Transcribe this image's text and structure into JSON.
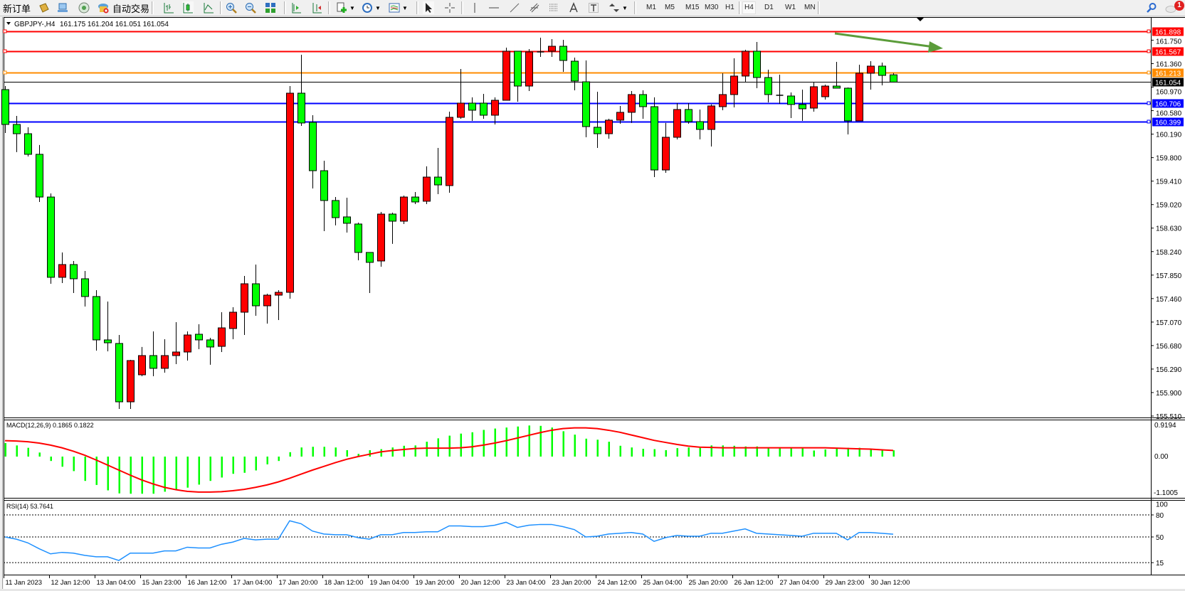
{
  "toolbar": {
    "new_order": "新订单",
    "auto_trading": "自动交易",
    "timeframes": [
      "M1",
      "M5",
      "M15",
      "M30",
      "H1",
      "H4",
      "D1",
      "W1",
      "MN"
    ],
    "active_timeframe": "H4",
    "notifications_count": "1",
    "icons": [
      "new-order-icon",
      "market-watch-icon",
      "navigator-icon",
      "signals-icon",
      "auto-trading-icon",
      "bar-chart-icon",
      "candlestick-icon",
      "line-chart-icon",
      "zoom-in-icon",
      "zoom-out-icon",
      "tile-windows-icon",
      "auto-scroll-icon",
      "chart-shift-icon",
      "new-chart-icon",
      "periods-clock-icon",
      "templates-icon",
      "cursor-icon",
      "crosshair-icon",
      "vertical-line-icon",
      "horizontal-line-icon",
      "trendline-icon",
      "fibonacci-expansion-icon",
      "fibonacci-fan-icon",
      "text-icon",
      "text-label-icon",
      "arrows-icon",
      "search-icon",
      "chat-icon"
    ]
  },
  "chart": {
    "symbol": "GBPJPY-,H4",
    "ohlc": "161.175 161.204 161.051 161.054",
    "price_ticks": [
      "161.750",
      "161.360",
      "160.970",
      "160.580",
      "160.190",
      "159.800",
      "159.410",
      "159.020",
      "158.630",
      "158.240",
      "157.850",
      "157.460",
      "157.070",
      "156.680",
      "156.290",
      "155.900",
      "155.510"
    ],
    "levels": [
      {
        "price": "161.898",
        "color": "#ff0000"
      },
      {
        "price": "161.567",
        "color": "#ff0000"
      },
      {
        "price": "161.213",
        "color": "#ff8c00"
      },
      {
        "price": "160.706",
        "color": "#0000ff"
      },
      {
        "price": "160.399",
        "color": "#0000ff"
      }
    ],
    "current_price": "161.054",
    "up_color": "#ff0000",
    "down_color": "#00ff00",
    "arrow_color": "#5b9c3a",
    "time_labels": [
      "11 Jan 2023",
      "12 Jan 12:00",
      "13 Jan 04:00",
      "15 Jan 23:00",
      "16 Jan 12:00",
      "17 Jan 04:00",
      "17 Jan 20:00",
      "18 Jan 12:00",
      "19 Jan 04:00",
      "19 Jan 20:00",
      "20 Jan 12:00",
      "23 Jan 04:00",
      "23 Jan 20:00",
      "24 Jan 12:00",
      "25 Jan 04:00",
      "25 Jan 20:00",
      "26 Jan 12:00",
      "27 Jan 04:00",
      "29 Jan 23:00",
      "30 Jan 12:00"
    ]
  },
  "macd": {
    "label": "MACD(12,26,9) 0.1865 0.1822",
    "axis_labels": [
      "0.9194",
      "0.00",
      "-1.1005"
    ],
    "histogram_color": "#00ff00",
    "signal_color": "#ff0000"
  },
  "rsi": {
    "label": "RSI(14) 53.7641",
    "axis_labels": [
      "100",
      "80",
      "50",
      "15"
    ],
    "line_color": "#1e90ff"
  },
  "chart_data": {
    "type": "candlestick",
    "timeframe": "H4",
    "ylim": [
      155.51,
      161.898
    ],
    "candles_ohlc": [
      [
        160.929,
        160.988,
        160.209,
        160.351
      ],
      [
        160.351,
        160.492,
        159.891,
        160.197
      ],
      [
        160.197,
        160.304,
        159.82,
        159.855
      ],
      [
        159.855,
        160.009,
        159.064,
        159.146
      ],
      [
        159.146,
        159.206,
        157.706,
        157.813
      ],
      [
        157.813,
        158.226,
        157.718,
        158.025
      ],
      [
        158.025,
        158.084,
        157.553,
        157.789
      ],
      [
        157.789,
        157.919,
        157.328,
        157.494
      ],
      [
        157.494,
        157.6,
        156.596,
        156.774
      ],
      [
        156.774,
        157.411,
        156.585,
        156.726
      ],
      [
        156.715,
        156.856,
        155.628,
        155.746
      ],
      [
        155.746,
        156.443,
        155.628,
        156.431
      ],
      [
        156.195,
        156.656,
        156.171,
        156.514
      ],
      [
        156.514,
        156.915,
        156.171,
        156.302
      ],
      [
        156.302,
        156.785,
        156.23,
        156.514
      ],
      [
        156.514,
        157.069,
        156.372,
        156.573
      ],
      [
        156.573,
        156.915,
        156.431,
        156.856
      ],
      [
        156.868,
        157.034,
        156.62,
        156.774
      ],
      [
        156.774,
        156.809,
        156.361,
        156.656
      ],
      [
        156.667,
        157.234,
        156.573,
        156.974
      ],
      [
        156.963,
        157.317,
        156.785,
        157.234
      ],
      [
        157.234,
        157.836,
        156.856,
        157.706
      ],
      [
        157.706,
        158.025,
        157.175,
        157.34
      ],
      [
        157.34,
        157.541,
        157.045,
        157.517
      ],
      [
        157.517,
        157.6,
        157.104,
        157.564
      ],
      [
        157.564,
        160.988,
        157.458,
        160.87
      ],
      [
        160.87,
        161.508,
        160.327,
        160.375
      ],
      [
        160.386,
        160.504,
        159.288,
        159.583
      ],
      [
        159.583,
        159.749,
        158.58,
        159.088
      ],
      [
        159.088,
        159.146,
        158.675,
        158.804
      ],
      [
        158.816,
        159.135,
        158.556,
        158.71
      ],
      [
        158.698,
        158.722,
        158.096,
        158.226
      ],
      [
        158.226,
        158.226,
        157.553,
        158.061
      ],
      [
        158.084,
        158.899,
        157.99,
        158.863
      ],
      [
        158.863,
        158.887,
        158.368,
        158.745
      ],
      [
        158.745,
        159.17,
        158.698,
        159.146
      ],
      [
        159.146,
        159.229,
        159.029,
        159.064
      ],
      [
        159.076,
        159.655,
        159.029,
        159.477
      ],
      [
        159.477,
        159.961,
        159.194,
        159.347
      ],
      [
        159.336,
        160.563,
        159.217,
        160.469
      ],
      [
        160.469,
        161.272,
        160.445,
        160.705
      ],
      [
        160.705,
        160.8,
        160.41,
        160.587
      ],
      [
        160.705,
        160.859,
        160.445,
        160.504
      ],
      [
        160.504,
        160.8,
        160.351,
        160.752
      ],
      [
        160.752,
        161.626,
        160.752,
        161.567
      ],
      [
        161.567,
        161.567,
        160.729,
        160.988
      ],
      [
        160.988,
        161.602,
        160.906,
        161.555
      ],
      [
        161.555,
        161.791,
        161.472,
        161.555
      ],
      [
        161.567,
        161.767,
        161.472,
        161.649
      ],
      [
        161.649,
        161.756,
        161.224,
        161.413
      ],
      [
        161.401,
        161.46,
        160.918,
        161.071
      ],
      [
        161.059,
        161.413,
        160.138,
        160.315
      ],
      [
        160.304,
        160.894,
        159.961,
        160.197
      ],
      [
        160.197,
        160.445,
        160.115,
        160.422
      ],
      [
        160.422,
        160.658,
        160.363,
        160.552
      ],
      [
        160.552,
        160.906,
        160.375,
        160.847
      ],
      [
        160.847,
        160.918,
        160.445,
        160.646
      ],
      [
        160.646,
        160.8,
        159.477,
        159.595
      ],
      [
        159.595,
        160.375,
        159.548,
        160.138
      ],
      [
        160.138,
        160.705,
        160.103,
        160.599
      ],
      [
        160.599,
        160.705,
        160.363,
        160.398
      ],
      [
        160.398,
        160.599,
        160.103,
        160.268
      ],
      [
        160.268,
        160.682,
        159.985,
        160.658
      ],
      [
        160.646,
        161.201,
        160.587,
        160.847
      ],
      [
        160.847,
        161.449,
        160.634,
        161.154
      ],
      [
        161.154,
        161.59,
        161.047,
        161.567
      ],
      [
        161.567,
        161.72,
        160.953,
        161.13
      ],
      [
        161.13,
        161.26,
        160.717,
        160.847
      ],
      [
        160.835,
        161.177,
        160.693,
        160.835
      ],
      [
        160.823,
        160.882,
        160.457,
        160.682
      ],
      [
        160.682,
        160.929,
        160.41,
        160.611
      ],
      [
        160.622,
        161.047,
        160.563,
        160.977
      ],
      [
        160.811,
        161.012,
        160.764,
        160.988
      ],
      [
        160.988,
        161.39,
        160.953,
        160.953
      ],
      [
        160.953,
        160.965,
        160.186,
        160.41
      ],
      [
        160.41,
        161.342,
        160.41,
        161.201
      ],
      [
        161.201,
        161.401,
        160.929,
        161.319
      ],
      [
        161.319,
        161.378,
        161.0,
        161.165
      ],
      [
        161.175,
        161.204,
        161.051,
        161.054
      ]
    ],
    "macd_histogram": [
      0.4,
      0.33,
      0.26,
      0.12,
      -0.13,
      -0.3,
      -0.43,
      -0.72,
      -0.84,
      -1.0,
      -1.09,
      -1.1,
      -1.1,
      -1.1,
      -1.04,
      -0.99,
      -0.92,
      -0.83,
      -0.72,
      -0.62,
      -0.51,
      -0.48,
      -0.41,
      -0.23,
      -0.13,
      0.13,
      0.27,
      0.29,
      0.29,
      0.27,
      0.19,
      0.08,
      0.19,
      0.22,
      0.27,
      0.32,
      0.33,
      0.44,
      0.54,
      0.62,
      0.68,
      0.72,
      0.79,
      0.83,
      0.86,
      0.89,
      0.92,
      0.91,
      0.86,
      0.75,
      0.65,
      0.53,
      0.5,
      0.44,
      0.32,
      0.27,
      0.23,
      0.22,
      0.19,
      0.25,
      0.27,
      0.26,
      0.33,
      0.33,
      0.32,
      0.3,
      0.3,
      0.27,
      0.27,
      0.27,
      0.26,
      0.18,
      0.21,
      0.24,
      0.26,
      0.26,
      0.22,
      0.19,
      0.1865
    ],
    "macd_signal": [
      0.47,
      0.46,
      0.44,
      0.4,
      0.34,
      0.26,
      0.16,
      0.04,
      -0.1,
      -0.25,
      -0.4,
      -0.55,
      -0.69,
      -0.81,
      -0.91,
      -0.98,
      -1.03,
      -1.05,
      -1.05,
      -1.04,
      -1.01,
      -0.97,
      -0.91,
      -0.84,
      -0.75,
      -0.64,
      -0.52,
      -0.4,
      -0.29,
      -0.18,
      -0.08,
      0.0,
      0.07,
      0.14,
      0.18,
      0.21,
      0.24,
      0.25,
      0.25,
      0.25,
      0.26,
      0.29,
      0.34,
      0.4,
      0.47,
      0.55,
      0.63,
      0.71,
      0.78,
      0.83,
      0.85,
      0.85,
      0.83,
      0.78,
      0.72,
      0.64,
      0.56,
      0.48,
      0.42,
      0.36,
      0.31,
      0.28,
      0.27,
      0.26,
      0.26,
      0.26,
      0.26,
      0.26,
      0.26,
      0.26,
      0.26,
      0.26,
      0.26,
      0.25,
      0.24,
      0.23,
      0.22,
      0.2,
      0.1822
    ],
    "macd_ylim": [
      -1.1005,
      0.9194
    ],
    "rsi": [
      50,
      47,
      42,
      34,
      27,
      29,
      28,
      25,
      23,
      23,
      18,
      28,
      28,
      28,
      31,
      31,
      36,
      35,
      35,
      40,
      43,
      48,
      46,
      47,
      47,
      72,
      68,
      58,
      54,
      53,
      53,
      49,
      47,
      53,
      53,
      56,
      56,
      57,
      57,
      65,
      65,
      64,
      64,
      66,
      70,
      63,
      66,
      67,
      67,
      64,
      60,
      50,
      51,
      54,
      55,
      56,
      54,
      44,
      49,
      52,
      51,
      51,
      55,
      55,
      58,
      61,
      55,
      54,
      53,
      52,
      51,
      55,
      55,
      55,
      46,
      56,
      56,
      55,
      53.7641
    ],
    "rsi_levels": [
      80,
      50,
      15
    ],
    "rsi_ylim": [
      0,
      100
    ]
  }
}
